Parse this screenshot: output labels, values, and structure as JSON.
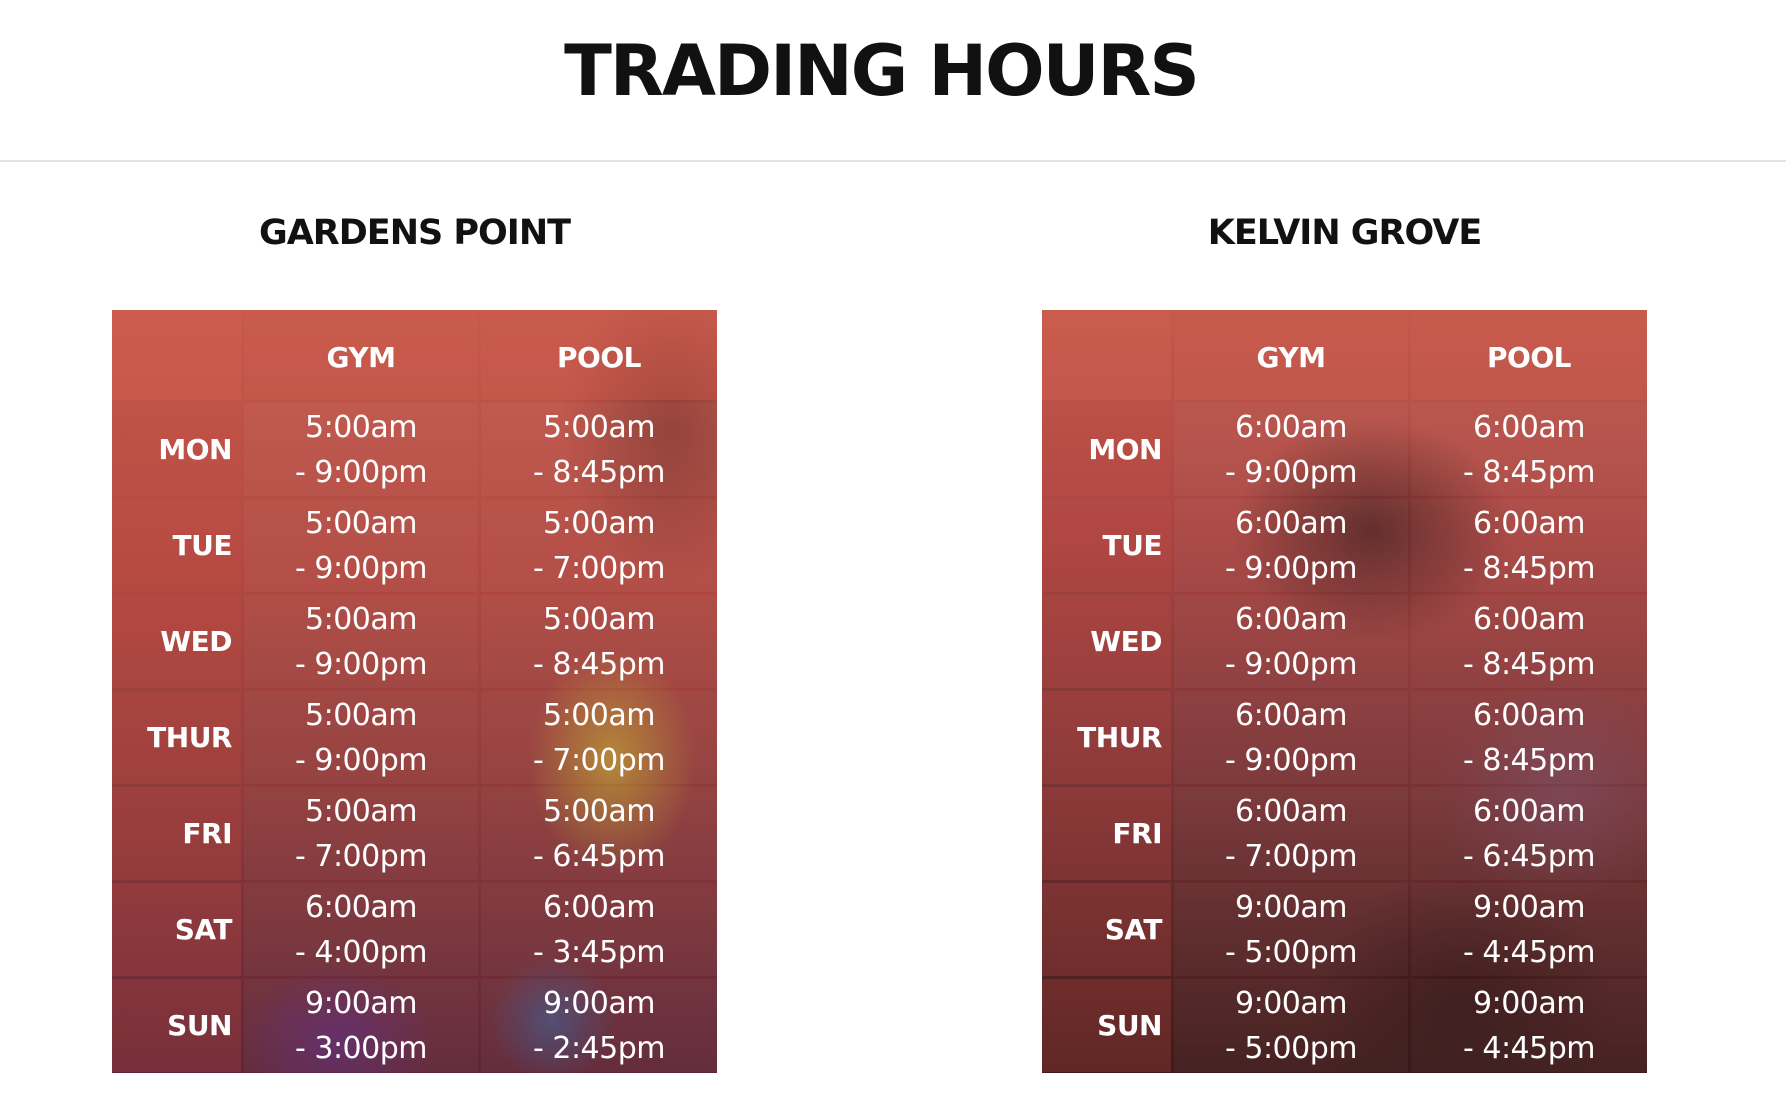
{
  "page": {
    "title": "TRADING HOURS"
  },
  "headers": {
    "gym": "GYM",
    "pool": "POOL"
  },
  "campuses": [
    {
      "name": "GARDENS POINT",
      "rows": [
        {
          "day": "MON",
          "gym_open": "5:00am",
          "gym_close": "- 9:00pm",
          "pool_open": "5:00am",
          "pool_close": "- 8:45pm"
        },
        {
          "day": "TUE",
          "gym_open": "5:00am",
          "gym_close": "- 9:00pm",
          "pool_open": "5:00am",
          "pool_close": "- 7:00pm"
        },
        {
          "day": "WED",
          "gym_open": "5:00am",
          "gym_close": "- 9:00pm",
          "pool_open": "5:00am",
          "pool_close": "- 8:45pm"
        },
        {
          "day": "THUR",
          "gym_open": "5:00am",
          "gym_close": "- 9:00pm",
          "pool_open": "5:00am",
          "pool_close": "- 7:00pm"
        },
        {
          "day": "FRI",
          "gym_open": "5:00am",
          "gym_close": "- 7:00pm",
          "pool_open": "5:00am",
          "pool_close": "- 6:45pm"
        },
        {
          "day": "SAT",
          "gym_open": "6:00am",
          "gym_close": "- 4:00pm",
          "pool_open": "6:00am",
          "pool_close": "- 3:45pm"
        },
        {
          "day": "SUN",
          "gym_open": "9:00am",
          "gym_close": "- 3:00pm",
          "pool_open": "9:00am",
          "pool_close": "- 2:45pm"
        }
      ]
    },
    {
      "name": "KELVIN GROVE",
      "rows": [
        {
          "day": "MON",
          "gym_open": "6:00am",
          "gym_close": "- 9:00pm",
          "pool_open": "6:00am",
          "pool_close": "- 8:45pm"
        },
        {
          "day": "TUE",
          "gym_open": "6:00am",
          "gym_close": "- 9:00pm",
          "pool_open": "6:00am",
          "pool_close": "- 8:45pm"
        },
        {
          "day": "WED",
          "gym_open": "6:00am",
          "gym_close": "- 9:00pm",
          "pool_open": "6:00am",
          "pool_close": "- 8:45pm"
        },
        {
          "day": "THUR",
          "gym_open": "6:00am",
          "gym_close": "- 9:00pm",
          "pool_open": "6:00am",
          "pool_close": "- 8:45pm"
        },
        {
          "day": "FRI",
          "gym_open": "6:00am",
          "gym_close": "- 7:00pm",
          "pool_open": "6:00am",
          "pool_close": "- 6:45pm"
        },
        {
          "day": "SAT",
          "gym_open": "9:00am",
          "gym_close": "- 5:00pm",
          "pool_open": "9:00am",
          "pool_close": "- 4:45pm"
        },
        {
          "day": "SUN",
          "gym_open": "9:00am",
          "gym_close": "- 5:00pm",
          "pool_open": "9:00am",
          "pool_close": "- 4:45pm"
        }
      ]
    }
  ]
}
